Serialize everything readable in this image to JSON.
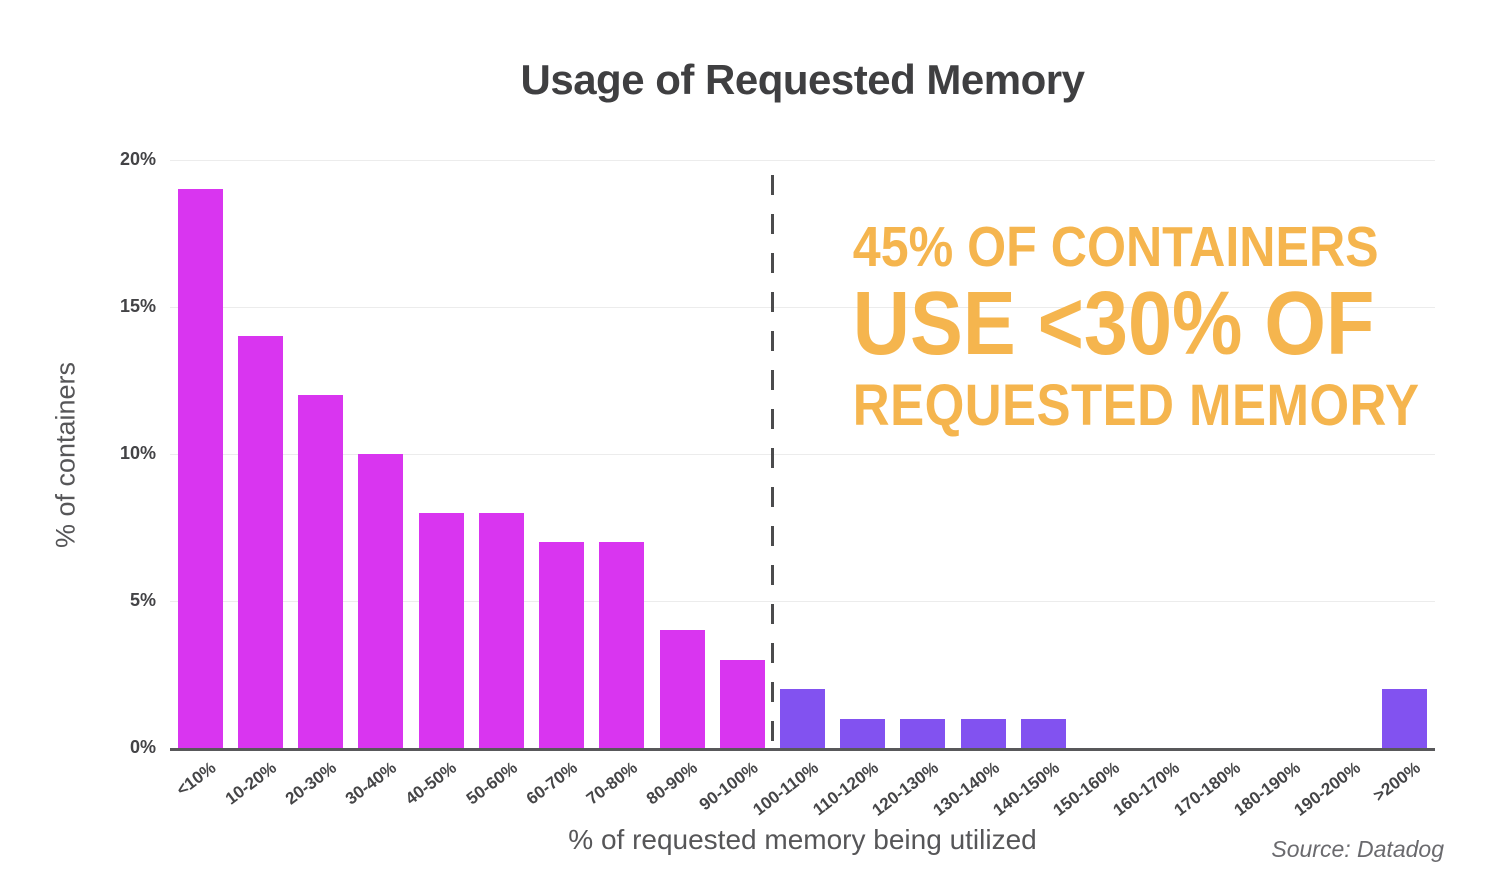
{
  "title": "Usage of Requested Memory",
  "y_axis": {
    "label": "% of containers"
  },
  "x_axis": {
    "label": "% of requested memory being utilized"
  },
  "annotation": {
    "line1": "45% OF CONTAINERS",
    "line2": "USE <30% OF",
    "line3": "REQUESTED MEMORY",
    "color": "#f5b54e"
  },
  "source": "Source: Datadog",
  "colors": {
    "bar_magenta": "#d935f0",
    "bar_purple": "#8252f0",
    "axis_line": "#58585a",
    "gridline": "#ececec",
    "divider": "#4b4b4d",
    "title_text": "#3f3f41",
    "secondary_text": "#565658"
  },
  "chart_data": {
    "type": "bar",
    "title": "Usage of Requested Memory",
    "xlabel": "% of requested memory being utilized",
    "ylabel": "% of containers",
    "categories": [
      "<10%",
      "10-20%",
      "20-30%",
      "30-40%",
      "40-50%",
      "50-60%",
      "60-70%",
      "70-80%",
      "80-90%",
      "90-100%",
      "100-110%",
      "110-120%",
      "120-130%",
      "130-140%",
      "140-150%",
      "150-160%",
      "160-170%",
      "170-180%",
      "180-190%",
      "190-200%",
      ">200%"
    ],
    "values": [
      19,
      14,
      12,
      10,
      8,
      8,
      7,
      7,
      4,
      3,
      2,
      1,
      1,
      1,
      1,
      0,
      0,
      0,
      0,
      0,
      2
    ],
    "ylim": [
      0,
      20
    ],
    "yticks": [
      0,
      5,
      10,
      15,
      20
    ],
    "ytick_labels": [
      "0%",
      "5%",
      "10%",
      "15%",
      "20%"
    ],
    "grid": "horizontal",
    "legend": "none",
    "color_split_index": 10,
    "divider_at_category_boundary": 10,
    "annotation_text": "45% OF CONTAINERS USE <30% OF REQUESTED MEMORY"
  }
}
